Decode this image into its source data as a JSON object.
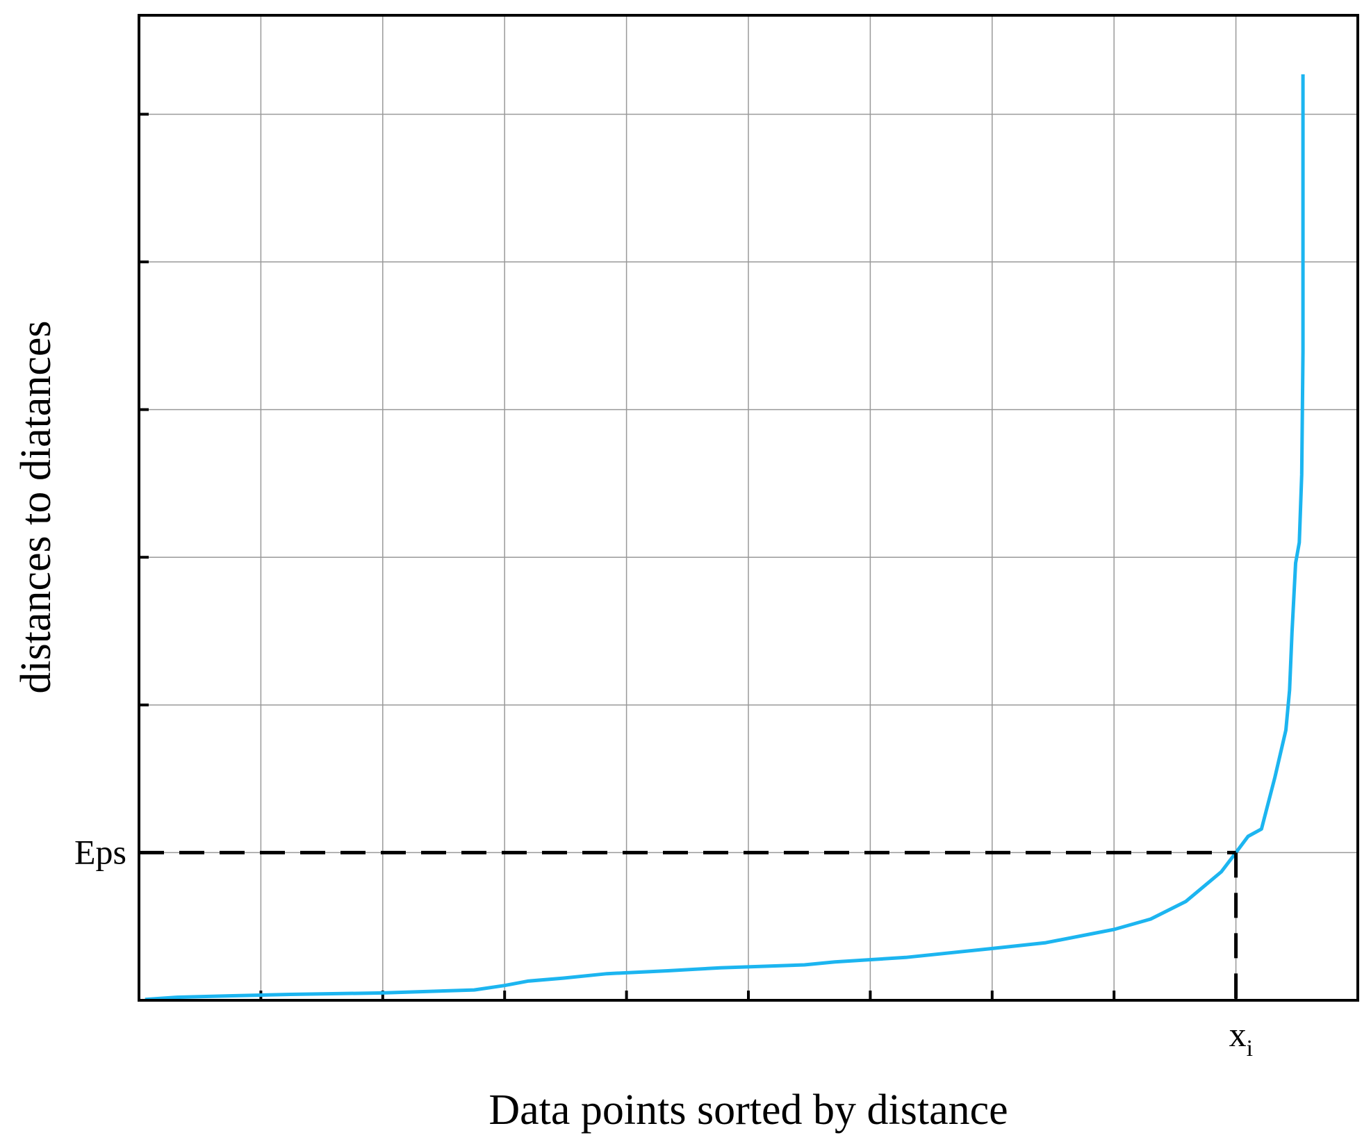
{
  "chart_data": {
    "type": "line",
    "xlabel": "Data points sorted by distance",
    "ylabel": "distances to diatances",
    "xlim": [
      0,
      10
    ],
    "ylim": [
      0,
      6.67
    ],
    "xticks": [
      1,
      2,
      3,
      4,
      5,
      6,
      7,
      8,
      9
    ],
    "yticks": [
      1,
      2,
      3,
      4,
      5,
      6
    ],
    "grid": true,
    "series": [
      {
        "color": "#1cb5f0",
        "x": [
          0.05,
          0.3,
          0.74,
          1.24,
          2.0,
          2.75,
          3.0,
          3.19,
          3.48,
          3.84,
          4.34,
          4.77,
          5.46,
          5.71,
          6.29,
          6.99,
          7.44,
          8.0,
          8.3,
          8.59,
          8.88,
          9.0,
          9.1,
          9.21,
          9.32,
          9.41,
          9.44,
          9.46,
          9.49,
          9.52,
          9.54,
          9.55,
          9.55,
          9.55
        ],
        "values": [
          0.006,
          0.02,
          0.03,
          0.04,
          0.05,
          0.07,
          0.1,
          0.13,
          0.15,
          0.18,
          0.2,
          0.22,
          0.24,
          0.26,
          0.29,
          0.35,
          0.39,
          0.48,
          0.55,
          0.67,
          0.87,
          1.0,
          1.11,
          1.16,
          1.51,
          1.83,
          2.1,
          2.49,
          2.96,
          3.1,
          3.56,
          4.39,
          5.58,
          6.27
        ]
      }
    ],
    "annotations": {
      "eps": {
        "label": "Eps",
        "value": 1
      },
      "xi": {
        "label": "x",
        "subscript": "i",
        "value": 9
      }
    }
  }
}
